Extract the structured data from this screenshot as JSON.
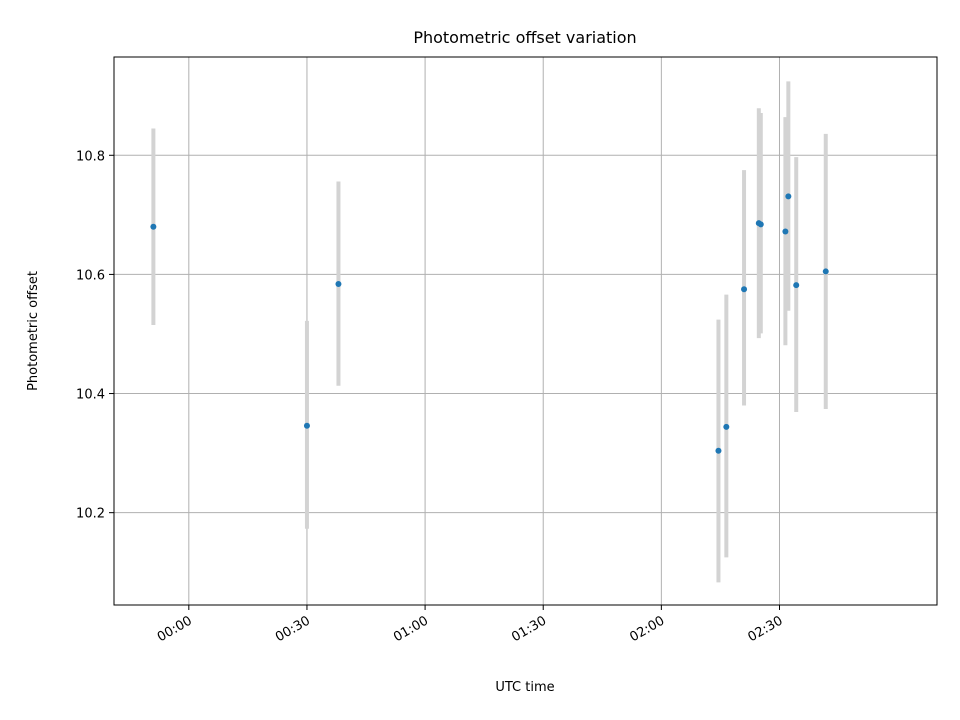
{
  "chart_data": {
    "type": "scatter",
    "title": "Photometric offset variation",
    "xlabel": "UTC time",
    "ylabel": "Photometric offset",
    "x_unit": "time of day (HH:MM, UTC)",
    "xlim": [
      "23:41",
      "03:10"
    ],
    "ylim": [
      10.045,
      10.965
    ],
    "x_ticks": [
      "00:00",
      "00:30",
      "01:00",
      "01:30",
      "02:00",
      "02:30"
    ],
    "y_ticks": [
      10.2,
      10.4,
      10.6,
      10.8
    ],
    "y_tick_labels": [
      "10.2",
      "10.4",
      "10.6",
      "10.8"
    ],
    "grid": true,
    "legend": false,
    "colors": {
      "point": "#1f77b4",
      "errorbar": "#d3d3d3",
      "grid": "#b0b0b0"
    },
    "series": [
      {
        "points": [
          {
            "x": "23:51:00",
            "y": 10.68,
            "yerr_low": 10.515,
            "yerr_high": 10.845
          },
          {
            "x": "00:30:00",
            "y": 10.346,
            "yerr_low": 10.173,
            "yerr_high": 10.522
          },
          {
            "x": "00:38:00",
            "y": 10.584,
            "yerr_low": 10.413,
            "yerr_high": 10.756
          },
          {
            "x": "02:14:30",
            "y": 10.304,
            "yerr_low": 10.083,
            "yerr_high": 10.524
          },
          {
            "x": "02:16:30",
            "y": 10.344,
            "yerr_low": 10.125,
            "yerr_high": 10.566
          },
          {
            "x": "02:21:00",
            "y": 10.575,
            "yerr_low": 10.38,
            "yerr_high": 10.775
          },
          {
            "x": "02:24:45",
            "y": 10.686,
            "yerr_low": 10.493,
            "yerr_high": 10.879
          },
          {
            "x": "02:25:15",
            "y": 10.684,
            "yerr_low": 10.501,
            "yerr_high": 10.871
          },
          {
            "x": "02:31:30",
            "y": 10.672,
            "yerr_low": 10.481,
            "yerr_high": 10.864
          },
          {
            "x": "02:32:15",
            "y": 10.731,
            "yerr_low": 10.539,
            "yerr_high": 10.924
          },
          {
            "x": "02:34:15",
            "y": 10.582,
            "yerr_low": 10.369,
            "yerr_high": 10.797
          },
          {
            "x": "02:41:45",
            "y": 10.605,
            "yerr_low": 10.374,
            "yerr_high": 10.836
          }
        ]
      }
    ]
  }
}
